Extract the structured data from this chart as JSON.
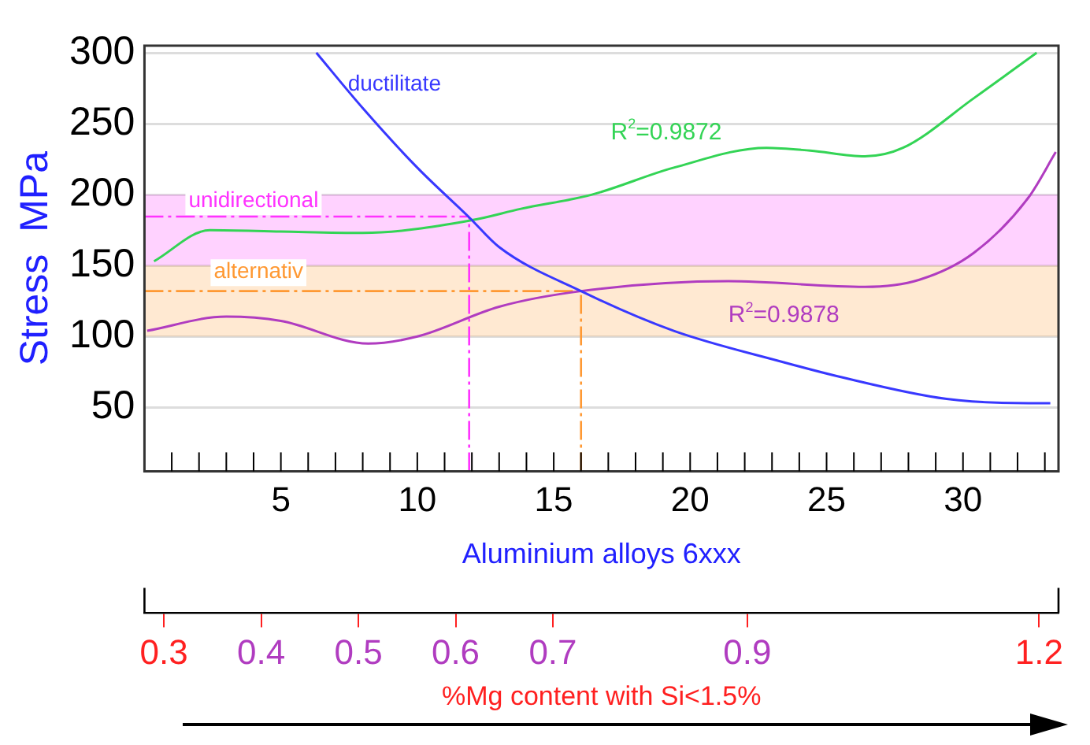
{
  "chart_data": {
    "type": "line",
    "xlabel": "Aluminium alloys 6xxx",
    "ylabel": "Stress  MPa",
    "x2label": "%Mg content with Si<1.5%",
    "xlim": [
      0,
      33.5
    ],
    "ylim": [
      5,
      305
    ],
    "yticks": [
      50,
      100,
      150,
      200,
      250,
      300
    ],
    "xticks": [
      {
        "value": 1,
        "label": null
      },
      {
        "value": 2,
        "label": null
      },
      {
        "value": 3,
        "label": null
      },
      {
        "value": 4,
        "label": null
      },
      5,
      {
        "value": 6,
        "label": null
      },
      {
        "value": 7,
        "label": null
      },
      {
        "value": 8,
        "label": null
      },
      {
        "value": 9,
        "label": null
      },
      10,
      {
        "value": 11,
        "label": null
      },
      {
        "value": 12,
        "label": null
      },
      {
        "value": 13,
        "label": null
      },
      {
        "value": 14,
        "label": null
      },
      15,
      {
        "value": 16,
        "label": null
      },
      {
        "value": 17,
        "label": null
      },
      {
        "value": 18,
        "label": null
      },
      {
        "value": 19,
        "label": null
      },
      20,
      {
        "value": 21,
        "label": null
      },
      {
        "value": 22,
        "label": null
      },
      {
        "value": 23,
        "label": null
      },
      {
        "value": 24,
        "label": null
      },
      25,
      {
        "value": 26,
        "label": null
      },
      {
        "value": 27,
        "label": null
      },
      {
        "value": 28,
        "label": null
      },
      {
        "value": 29,
        "label": null
      },
      30,
      {
        "value": 31,
        "label": null
      },
      {
        "value": 32,
        "label": null
      },
      {
        "value": 33,
        "label": null
      }
    ],
    "x2lim": [
      0.28,
      1.22
    ],
    "x2ticks": [
      0.3,
      0.4,
      0.5,
      0.6,
      0.7,
      0.9,
      1.2
    ],
    "grid": "y",
    "marker": "none",
    "series": [
      {
        "name": "ductilitate",
        "color": "#3838ff",
        "x": [
          6.3,
          8,
          10,
          11.9,
          13,
          16,
          19.4,
          23.4,
          25.4,
          29.4,
          32.4,
          33.2
        ],
        "values": [
          300,
          261,
          219,
          184,
          163,
          132,
          104,
          82,
          72,
          56,
          53,
          53
        ]
      },
      {
        "color": "#33d455",
        "x": [
          0.35,
          2.4,
          5,
          8,
          12,
          13.8,
          16.4,
          19.4,
          22.8,
          24.4,
          26.4,
          27.8,
          30.4,
          32.7
        ],
        "values": [
          153,
          175,
          174,
          173,
          182,
          190,
          200,
          219,
          233,
          231,
          227,
          233,
          268,
          300
        ]
      },
      {
        "color": "#b03cc0",
        "x": [
          0.1,
          3,
          5,
          8.2,
          10,
          13,
          16,
          21.4,
          26.4,
          28.4,
          30.4,
          32.4,
          33.4
        ],
        "values": [
          104,
          114,
          111,
          95,
          100,
          121,
          132,
          139,
          135,
          140,
          159,
          198,
          230
        ]
      }
    ],
    "bands": [
      {
        "axis": "y",
        "from": 150,
        "to": 200,
        "label": "unidirectional",
        "color": "#ff33ff"
      },
      {
        "axis": "y",
        "from": 100,
        "to": 150,
        "label": "alternativ",
        "color": "#ff9933"
      }
    ],
    "ref_lines": [
      {
        "axis": "y",
        "value": 184.5,
        "color": "#ff33ff",
        "line_style": "dashed"
      },
      {
        "axis": "x",
        "value": 11.9,
        "color": "#ff33ff",
        "line_style": "dashed"
      },
      {
        "axis": "y",
        "value": 132,
        "color": "#ff9933",
        "line_style": "dashed"
      },
      {
        "axis": "x",
        "value": 16,
        "color": "#ff9933",
        "line_style": "dashed"
      }
    ],
    "annotations": [
      {
        "text": "R$^{2}$=0.9872",
        "x": 19.4,
        "y": 219
      },
      {
        "text": "R$^{2}$=0.9878",
        "x": 21.4,
        "y": 139
      }
    ]
  }
}
